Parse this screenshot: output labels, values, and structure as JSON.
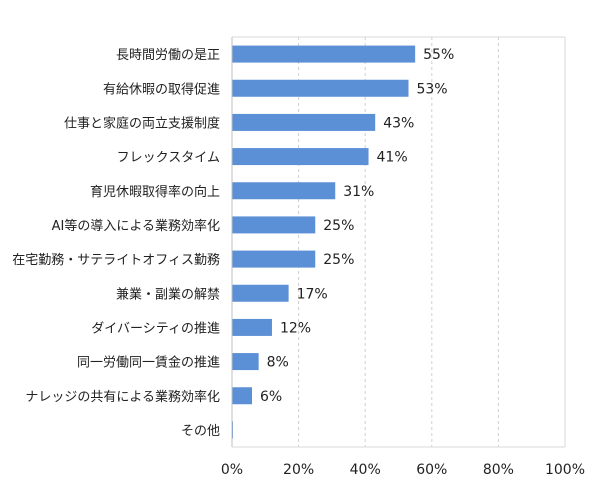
{
  "chart_data": {
    "type": "bar",
    "orientation": "horizontal",
    "categories": [
      "長時間労働の是正",
      "有給休暇の取得促進",
      "仕事と家庭の両立支援制度",
      "フレックスタイム",
      "育児休暇取得率の向上",
      "AI等の導入による業務効率化",
      "在宅勤務・サテライトオフィス勤務",
      "兼業・副業の解禁",
      "ダイバーシティの推進",
      "同一労働同一賃金の推進",
      "ナレッジの共有による業務効率化",
      "その他"
    ],
    "values": [
      55,
      53,
      43,
      41,
      31,
      25,
      25,
      17,
      12,
      8,
      6,
      0.3
    ],
    "value_labels": [
      "55%",
      "53%",
      "43%",
      "41%",
      "31%",
      "25%",
      "25%",
      "17%",
      "12%",
      "8%",
      "6%",
      ""
    ],
    "x_ticks": [
      0,
      20,
      40,
      60,
      80,
      100
    ],
    "x_tick_labels": [
      "0%",
      "20%",
      "40%",
      "60%",
      "80%",
      "100%"
    ],
    "xlim": [
      0,
      100
    ],
    "grid": "vertical dashed",
    "bar_color": "#5b8fd6",
    "title": "",
    "xlabel": "",
    "ylabel": ""
  }
}
